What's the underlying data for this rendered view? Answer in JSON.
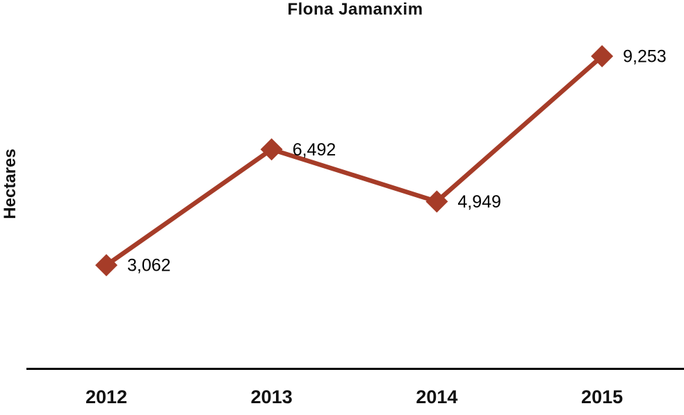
{
  "chart_data": {
    "type": "line",
    "title": "Flona Jamanxim",
    "xlabel": "",
    "ylabel": "Hectares",
    "categories": [
      "2012",
      "2013",
      "2014",
      "2015"
    ],
    "series": [
      {
        "name": "Flona Jamanxim",
        "values": [
          3062,
          6492,
          4949,
          9253
        ],
        "data_labels": [
          "3,062",
          "6,492",
          "4,949",
          "9,253"
        ]
      }
    ],
    "ylim": [
      0,
      9253
    ],
    "grid": false,
    "legend_position": "none",
    "marker": "diamond",
    "colors": {
      "line": "#A63C28",
      "marker": "#A63C28",
      "axis": "#000000",
      "text": "#000000",
      "background": "#ffffff"
    }
  }
}
